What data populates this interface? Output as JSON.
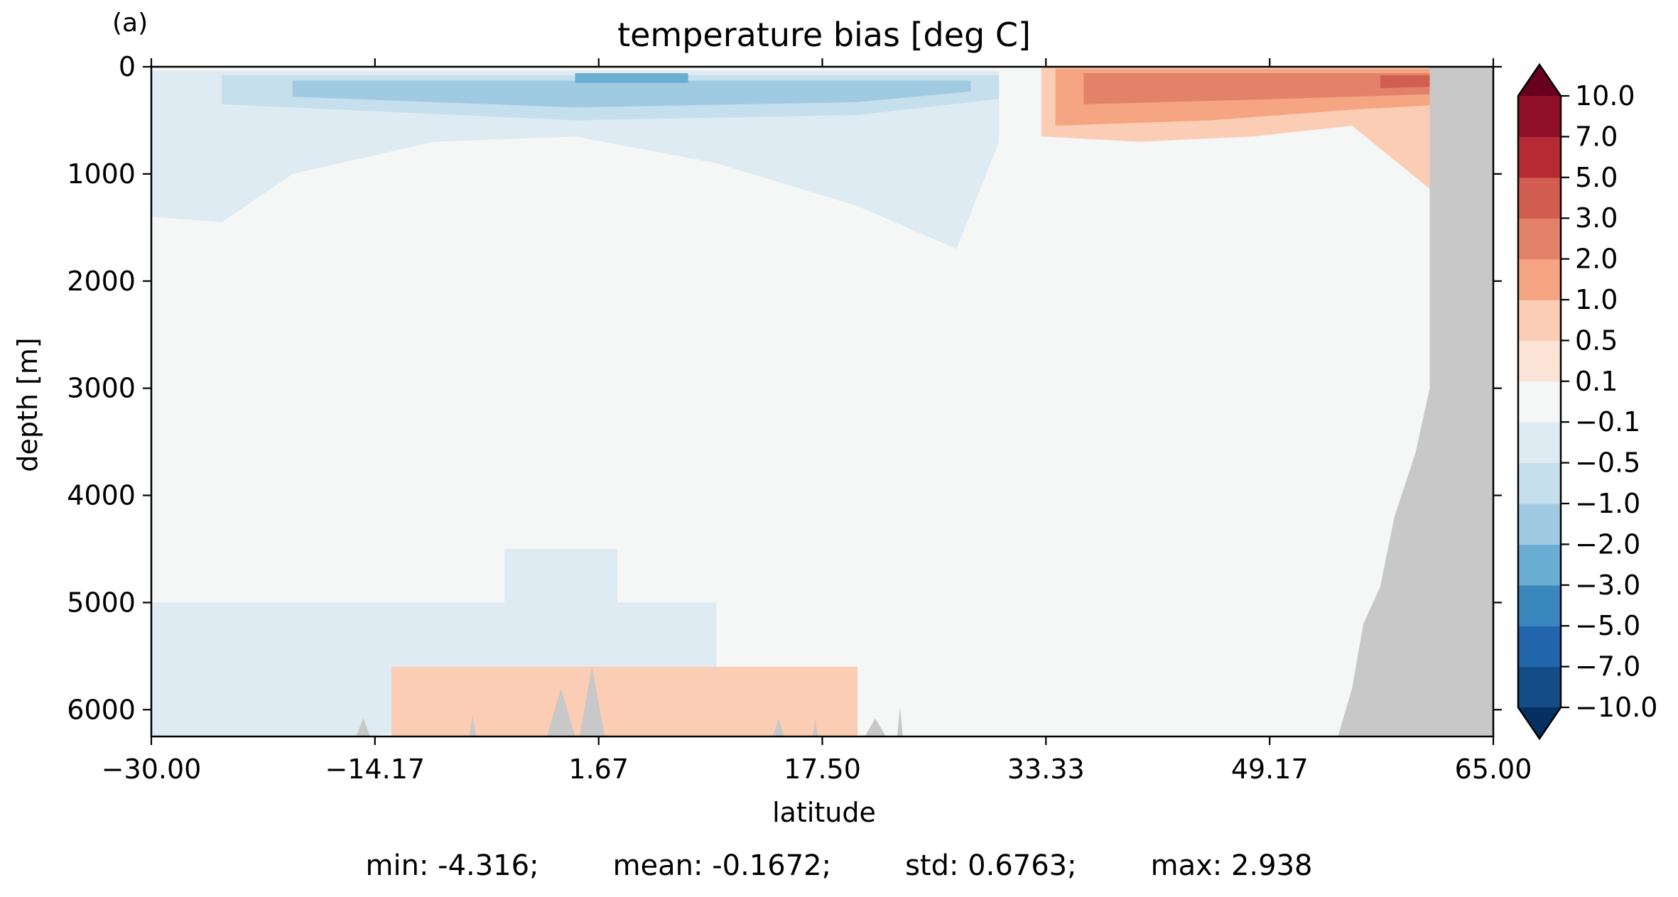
{
  "panel_label": "(a)",
  "stats": {
    "min": "min: -4.316;",
    "mean": "mean: -0.1672;",
    "std": "std: 0.6763;",
    "max": "max: 2.938"
  },
  "chart_data": {
    "type": "heatmap",
    "title": "temperature bias [deg C]",
    "xlabel": "latitude",
    "ylabel": "depth [m]",
    "xlim": [
      -30.0,
      65.0
    ],
    "ylim": [
      6250,
      0
    ],
    "y_inverted": true,
    "xticks": [
      -30.0,
      -14.17,
      1.67,
      17.5,
      33.33,
      49.17,
      65.0
    ],
    "xtick_labels": [
      "−30.00",
      "−14.17",
      "1.67",
      "17.50",
      "33.33",
      "49.17",
      "65.00"
    ],
    "yticks": [
      0,
      1000,
      2000,
      3000,
      4000,
      5000,
      6000
    ],
    "ytick_labels": [
      "0",
      "1000",
      "2000",
      "3000",
      "4000",
      "5000",
      "6000"
    ],
    "colorbar": {
      "colormap": "RdBu_r",
      "extend": "both",
      "levels": [
        -10.0,
        -7.0,
        -5.0,
        -3.0,
        -2.0,
        -1.0,
        -0.5,
        -0.1,
        0.1,
        0.5,
        1.0,
        2.0,
        3.0,
        5.0,
        7.0,
        10.0
      ],
      "labels": [
        "10.0",
        "7.0",
        "5.0",
        "3.0",
        "2.0",
        "1.0",
        "0.5",
        "0.1",
        "−0.1",
        "−0.5",
        "−1.0",
        "−2.0",
        "−3.0",
        "−5.0",
        "−7.0",
        "−10.0"
      ],
      "colors_low_to_high": [
        "#053061",
        "#134c87",
        "#2166ac",
        "#3a87bd",
        "#6aaed3",
        "#9fcae1",
        "#c5dfec",
        "#deebf2",
        "#f5f6f6",
        "#fbe4d6",
        "#fbcdb4",
        "#f5a582",
        "#e3826a",
        "#d15e51",
        "#b72a33",
        "#8e0f27",
        "#67001f"
      ]
    },
    "missing_color": "#c8c8c8",
    "regions": [
      {
        "bias": -0.5,
        "lat": [
          -30,
          -25,
          -20,
          -10,
          0,
          10,
          20,
          27,
          30
        ],
        "depth_top": 40,
        "depth_bottom": [
          1400,
          1450,
          1000,
          700,
          650,
          900,
          1300,
          1700,
          700
        ]
      },
      {
        "bias": -1.0,
        "lat": [
          -25,
          0,
          20,
          30
        ],
        "depth_top": 80,
        "depth_bottom": [
          350,
          500,
          450,
          300
        ]
      },
      {
        "bias": -2.0,
        "lat": [
          -20,
          0,
          20,
          28
        ],
        "depth_top": 130,
        "depth_bottom": [
          280,
          380,
          330,
          230
        ]
      },
      {
        "bias": -3.0,
        "lat": [
          0,
          8
        ],
        "depth_top": 60,
        "depth_bottom": [
          150,
          150
        ]
      },
      {
        "bias": -0.5,
        "lat": [
          -30,
          -22,
          -15,
          -5,
          0,
          5,
          10
        ],
        "depth_top": 5000,
        "depth_bottom": [
          6250,
          6250,
          6250,
          6100,
          5800,
          5900,
          5800
        ]
      },
      {
        "bias": -0.5,
        "lat": [
          -5,
          0,
          3
        ],
        "depth_top": 4500,
        "depth_bottom": [
          5900,
          5900,
          5700
        ]
      },
      {
        "bias": 0.5,
        "lat": [
          33,
          40,
          48,
          55,
          62
        ],
        "depth_top": 5,
        "depth_bottom": [
          650,
          700,
          650,
          550,
          1300
        ]
      },
      {
        "bias": 1.0,
        "lat": [
          34,
          45,
          55,
          62
        ],
        "depth_top": 20,
        "depth_bottom": [
          550,
          500,
          400,
          350
        ]
      },
      {
        "bias": 2.0,
        "lat": [
          36,
          50,
          62
        ],
        "depth_top": 60,
        "depth_bottom": [
          350,
          300,
          250
        ]
      },
      {
        "bias": 3.0,
        "lat": [
          57,
          62
        ],
        "depth_top": 80,
        "depth_bottom": [
          200,
          180
        ]
      },
      {
        "bias": 0.5,
        "lat": [
          -13,
          -12,
          -3,
          3,
          12,
          17,
          20
        ],
        "depth_top": 5600,
        "depth_bottom": [
          6250,
          6250,
          6250,
          6250,
          6250,
          6250,
          6250
        ]
      }
    ],
    "land": {
      "east_boundary": [
        [
          65.0,
          0
        ],
        [
          60.5,
          0
        ],
        [
          60.5,
          3000
        ],
        [
          59.5,
          3600
        ],
        [
          58.0,
          4200
        ],
        [
          57.0,
          4850
        ],
        [
          55.8,
          5200
        ],
        [
          55.0,
          5800
        ],
        [
          54.0,
          6250
        ],
        [
          65.0,
          6250
        ]
      ],
      "seafloor_bumps": [
        [
          -15.5,
          -14.5,
          6080
        ],
        [
          -7.5,
          -7.0,
          6050
        ],
        [
          -2.0,
          0.0,
          5800
        ],
        [
          0.3,
          2.1,
          5600
        ],
        [
          14.0,
          14.8,
          6080
        ],
        [
          16.8,
          17.2,
          6100
        ],
        [
          20.5,
          22.0,
          6080
        ],
        [
          22.8,
          23.2,
          5970
        ]
      ]
    }
  }
}
